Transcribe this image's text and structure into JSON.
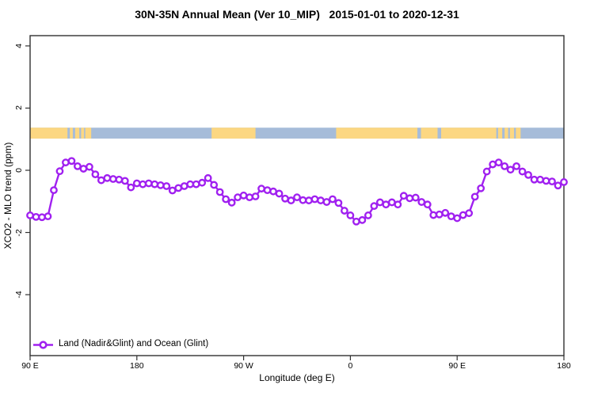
{
  "title": "30N-35N Annual Mean (Ver 10_MIP)   2015-01-01 to 2020-12-31",
  "colors": {
    "axis": "#303030",
    "text": "#000000",
    "series_purple": "#A020F0",
    "land_tan": "#FCD782",
    "ocean_blue": "#A6BCD9"
  },
  "chart_data": {
    "type": "line",
    "title": "30N-35N Annual Mean (Ver 10_MIP)   2015-01-01 to 2020-12-31",
    "xlabel": "Longitude (deg E)",
    "ylabel": "XCO2 - MLO trend (ppm)",
    "xlim": [
      90,
      540
    ],
    "ylim": [
      -5.96,
      4.33
    ],
    "grid": false,
    "x_ticks": [
      {
        "pos": 90,
        "label": "90 E"
      },
      {
        "pos": 180,
        "label": "180"
      },
      {
        "pos": 270,
        "label": "90 W"
      },
      {
        "pos": 360,
        "label": "0"
      },
      {
        "pos": 450,
        "label": "90 E"
      },
      {
        "pos": 540,
        "label": "180"
      }
    ],
    "y_ticks": [
      4,
      2,
      0,
      -2,
      -4
    ],
    "series": [
      {
        "name": "Land (Nadir&Glint) and Ocean (Glint)",
        "color": "#A020F0",
        "marker": "open-circle",
        "x": [
          90,
          95,
          100,
          105,
          110,
          115,
          120,
          125,
          130,
          135,
          140,
          145,
          150,
          155,
          160,
          165,
          170,
          175,
          180,
          185,
          190,
          195,
          200,
          205,
          210,
          215,
          220,
          225,
          230,
          235,
          240,
          245,
          250,
          255,
          260,
          265,
          270,
          275,
          280,
          285,
          290,
          295,
          300,
          305,
          310,
          315,
          320,
          325,
          330,
          335,
          340,
          345,
          350,
          355,
          360,
          365,
          370,
          375,
          380,
          385,
          390,
          395,
          400,
          405,
          410,
          415,
          420,
          425,
          430,
          435,
          440,
          445,
          450,
          455,
          460,
          465,
          470,
          475,
          480,
          485,
          490,
          495,
          500,
          505,
          510,
          515,
          520,
          525,
          530,
          535,
          540
        ],
        "y": [
          -1.45,
          -1.5,
          -1.51,
          -1.48,
          -0.64,
          -0.03,
          0.25,
          0.3,
          0.13,
          0.05,
          0.11,
          -0.13,
          -0.32,
          -0.25,
          -0.28,
          -0.3,
          -0.34,
          -0.55,
          -0.42,
          -0.45,
          -0.42,
          -0.45,
          -0.48,
          -0.51,
          -0.65,
          -0.57,
          -0.51,
          -0.45,
          -0.45,
          -0.4,
          -0.25,
          -0.47,
          -0.7,
          -0.93,
          -1.04,
          -0.87,
          -0.81,
          -0.87,
          -0.84,
          -0.59,
          -0.64,
          -0.68,
          -0.75,
          -0.91,
          -0.97,
          -0.87,
          -0.96,
          -0.97,
          -0.93,
          -0.97,
          -1.02,
          -0.93,
          -1.05,
          -1.3,
          -1.45,
          -1.65,
          -1.6,
          -1.45,
          -1.15,
          -1.03,
          -1.1,
          -1.03,
          -1.1,
          -0.82,
          -0.9,
          -0.88,
          -1.02,
          -1.1,
          -1.44,
          -1.42,
          -1.37,
          -1.48,
          -1.54,
          -1.44,
          -1.38,
          -0.85,
          -0.58,
          -0.04,
          0.19,
          0.25,
          0.13,
          0.02,
          0.13,
          -0.04,
          -0.15,
          -0.3,
          -0.3,
          -0.34,
          -0.36,
          -0.49,
          -0.38
        ]
      }
    ],
    "map_strip": {
      "description": "land-ocean reference band for 30N-35N latitude",
      "value_top": 1.37,
      "value_bottom": 1.02,
      "ocean_color": "#A6BCD9",
      "land_color": "#FCD782",
      "land_segments": [
        [
          90,
          121.5
        ],
        [
          123.5,
          126
        ],
        [
          128,
          131.5
        ],
        [
          133,
          135.5
        ],
        [
          136.5,
          141.5
        ],
        [
          243,
          280
        ],
        [
          348,
          416.5
        ],
        [
          419.5,
          433.5
        ],
        [
          436.5,
          483
        ],
        [
          484.5,
          488
        ],
        [
          490,
          493
        ],
        [
          494.5,
          498
        ],
        [
          499.5,
          503.5
        ]
      ]
    },
    "legend": {
      "position": "bottom-left-inside",
      "entries": [
        {
          "label": "Land (Nadir&Glint) and Ocean (Glint)",
          "color": "#A020F0",
          "marker": "open-circle"
        }
      ]
    }
  }
}
